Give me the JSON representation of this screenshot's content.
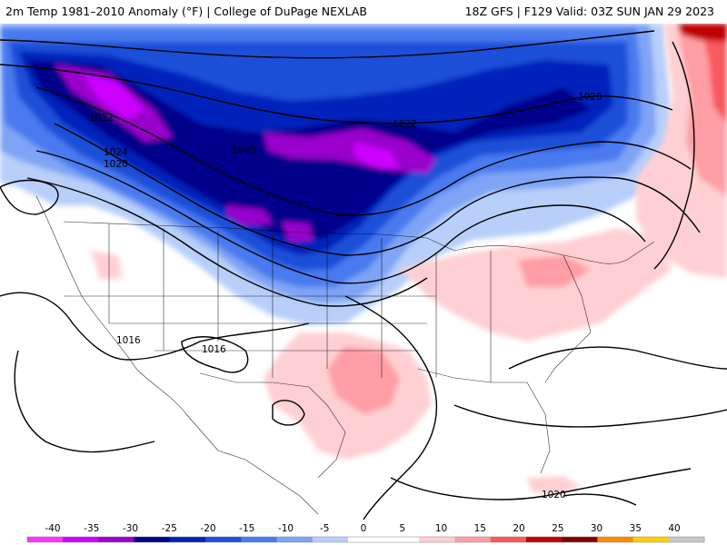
{
  "header": {
    "left_title": "2m Temp 1981–2010 Anomaly (°F) | College of DuPage NEXLAB",
    "right_title": "18Z GFS | F129 Valid: 03Z SUN JAN 29 2023"
  },
  "map": {
    "isobar_labels": [
      {
        "text": "1028",
        "kind": "pressure-label-1028"
      },
      {
        "text": "1032",
        "kind": "pressure-label-1032-west"
      },
      {
        "text": "1024",
        "kind": "pressure-label-1024"
      },
      {
        "text": "1020",
        "kind": "pressure-label-1020-north"
      },
      {
        "text": "1040",
        "kind": "pressure-label-1040"
      },
      {
        "text": "1032",
        "kind": "pressure-label-1032-central"
      },
      {
        "text": "1016",
        "kind": "pressure-label-1016-west"
      },
      {
        "text": "1016",
        "kind": "pressure-label-1016-central"
      },
      {
        "text": "1020",
        "kind": "pressure-label-1020-south"
      }
    ],
    "colors": {
      "background": "#ffffff",
      "contour": "#000000",
      "borders": "#000000"
    }
  },
  "colorbar": {
    "ticks": [
      "-40",
      "-35",
      "-30",
      "-25",
      "-20",
      "-15",
      "-10",
      "-5",
      "0",
      "5",
      "10",
      "15",
      "20",
      "25",
      "30",
      "35",
      "40"
    ],
    "colors": [
      "#ff33ff",
      "#cc00ff",
      "#9900cc",
      "#00008b",
      "#0022bb",
      "#1e50d8",
      "#4a7aef",
      "#7fa4f5",
      "#b8cffa",
      "#ffffff",
      "#ffffff",
      "#ffd0d3",
      "#ff9ea4",
      "#f8585f",
      "#c00000",
      "#800000",
      "#ff8c00",
      "#ffd000",
      "#c8c8c8"
    ]
  }
}
